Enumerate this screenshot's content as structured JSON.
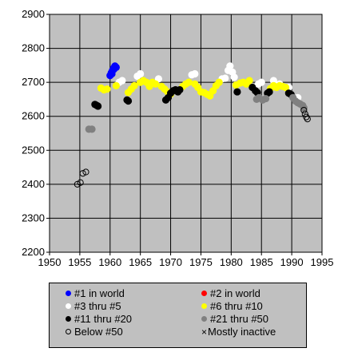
{
  "chart_data": {
    "type": "scatter",
    "title": "",
    "xlabel": "",
    "ylabel": "",
    "xlim": [
      1950,
      1995
    ],
    "ylim": [
      2200,
      2900
    ],
    "xticks": [
      1950,
      1955,
      1960,
      1965,
      1970,
      1975,
      1980,
      1985,
      1990,
      1995
    ],
    "yticks": [
      2200,
      2300,
      2400,
      2500,
      2600,
      2700,
      2800,
      2900
    ],
    "grid": true,
    "legend_position": "bottom",
    "series": [
      {
        "name": "#1 in world",
        "color": "#0000ff",
        "marker": "filled",
        "points": [
          [
            1960.0,
            2720
          ],
          [
            1960.2,
            2728
          ],
          [
            1960.4,
            2735
          ],
          [
            1960.6,
            2742
          ],
          [
            1960.8,
            2748
          ],
          [
            1961.0,
            2744
          ],
          [
            1960.3,
            2725
          ],
          [
            1960.6,
            2738
          ]
        ]
      },
      {
        "name": "#2 in world",
        "color": "#ff0000",
        "marker": "filled",
        "points": []
      },
      {
        "name": "#3 thru #5",
        "color": "#ffffff",
        "marker": "filled",
        "points": [
          [
            1961.5,
            2700
          ],
          [
            1962.0,
            2705
          ],
          [
            1964.5,
            2718
          ],
          [
            1965.0,
            2725
          ],
          [
            1968.0,
            2710
          ],
          [
            1973.5,
            2722
          ],
          [
            1974.0,
            2725
          ],
          [
            1978.5,
            2710
          ],
          [
            1979.0,
            2712
          ],
          [
            1979.5,
            2735
          ],
          [
            1979.8,
            2748
          ],
          [
            1980.2,
            2730
          ],
          [
            1980.5,
            2715
          ],
          [
            1984.5,
            2695
          ],
          [
            1985.0,
            2700
          ],
          [
            1987.0,
            2705
          ],
          [
            1988.0,
            2695
          ],
          [
            1989.5,
            2685
          ],
          [
            1991.0,
            2655
          ]
        ]
      },
      {
        "name": "#6 thru #10",
        "color": "#ffff00",
        "marker": "filled",
        "points": [
          [
            1958.5,
            2683
          ],
          [
            1959.0,
            2678
          ],
          [
            1959.5,
            2680
          ],
          [
            1961.0,
            2690
          ],
          [
            1963.0,
            2670
          ],
          [
            1963.5,
            2680
          ],
          [
            1964.0,
            2690
          ],
          [
            1965.0,
            2700
          ],
          [
            1965.5,
            2705
          ],
          [
            1966.0,
            2700
          ],
          [
            1966.5,
            2688
          ],
          [
            1967.0,
            2700
          ],
          [
            1967.5,
            2695
          ],
          [
            1968.5,
            2688
          ],
          [
            1969.0,
            2680
          ],
          [
            1969.5,
            2672
          ],
          [
            1970.0,
            2665
          ],
          [
            1972.0,
            2688
          ],
          [
            1972.5,
            2695
          ],
          [
            1973.0,
            2700
          ],
          [
            1974.0,
            2695
          ],
          [
            1974.5,
            2685
          ],
          [
            1975.0,
            2672
          ],
          [
            1975.5,
            2670
          ],
          [
            1976.0,
            2665
          ],
          [
            1976.5,
            2660
          ],
          [
            1977.0,
            2675
          ],
          [
            1977.5,
            2690
          ],
          [
            1978.0,
            2700
          ],
          [
            1980.8,
            2692
          ],
          [
            1981.5,
            2698
          ],
          [
            1982.0,
            2700
          ],
          [
            1982.5,
            2695
          ],
          [
            1983.0,
            2705
          ],
          [
            1986.5,
            2682
          ],
          [
            1987.0,
            2690
          ],
          [
            1987.5,
            2685
          ],
          [
            1988.0,
            2690
          ],
          [
            1988.5,
            2688
          ],
          [
            1989.0,
            2685
          ]
        ]
      },
      {
        "name": "#11 thru #20",
        "color": "#000000",
        "marker": "filled",
        "points": [
          [
            1957.5,
            2635
          ],
          [
            1957.8,
            2632
          ],
          [
            1958.0,
            2630
          ],
          [
            1962.8,
            2648
          ],
          [
            1963.0,
            2645
          ],
          [
            1969.2,
            2648
          ],
          [
            1969.6,
            2655
          ],
          [
            1970.0,
            2668
          ],
          [
            1970.4,
            2675
          ],
          [
            1970.8,
            2678
          ],
          [
            1971.2,
            2672
          ],
          [
            1971.5,
            2678
          ],
          [
            1981.0,
            2672
          ],
          [
            1983.5,
            2685
          ],
          [
            1984.0,
            2675
          ],
          [
            1984.3,
            2670
          ],
          [
            1986.0,
            2668
          ],
          [
            1986.3,
            2672
          ],
          [
            1989.5,
            2668
          ],
          [
            1989.9,
            2664
          ]
        ]
      },
      {
        "name": "#21 thru #50",
        "color": "#808080",
        "marker": "filled",
        "points": [
          [
            1956.5,
            2562
          ],
          [
            1957.0,
            2562
          ],
          [
            1984.2,
            2650
          ],
          [
            1984.6,
            2655
          ],
          [
            1985.2,
            2648
          ],
          [
            1985.7,
            2652
          ],
          [
            1990.2,
            2655
          ],
          [
            1990.6,
            2645
          ],
          [
            1991.0,
            2640
          ],
          [
            1991.4,
            2636
          ],
          [
            1991.8,
            2632
          ],
          [
            1992.0,
            2625
          ]
        ]
      },
      {
        "name": "Below #50",
        "color": "#000000",
        "marker": "hollow",
        "points": [
          [
            1954.6,
            2400
          ],
          [
            1955.1,
            2405
          ],
          [
            1955.5,
            2432
          ],
          [
            1956.0,
            2436
          ],
          [
            1992.0,
            2618
          ],
          [
            1992.2,
            2607
          ],
          [
            1992.4,
            2598
          ],
          [
            1992.6,
            2592
          ]
        ]
      },
      {
        "name": "Mostly inactive",
        "color": "#000000",
        "marker": "cross",
        "points": []
      }
    ]
  }
}
